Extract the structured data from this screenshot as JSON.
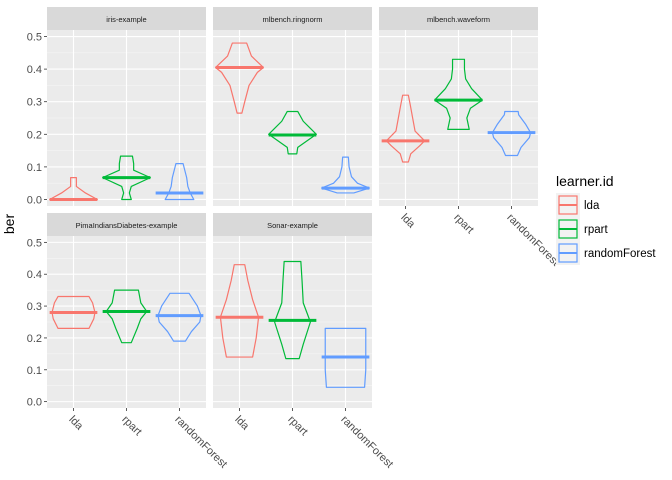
{
  "chart_data": {
    "type": "violin",
    "ylabel": "ber",
    "ylim": [
      -0.02,
      0.52
    ],
    "y_ticks": [
      "0.0",
      "0.1",
      "0.2",
      "0.3",
      "0.4",
      "0.5"
    ],
    "categories": [
      "lda",
      "rpart",
      "randomForest"
    ],
    "legend": {
      "title": "learner.id",
      "position": "right",
      "items": [
        {
          "label": "lda",
          "color": "#F8766D"
        },
        {
          "label": "rpart",
          "color": "#00BA38"
        },
        {
          "label": "randomForest",
          "color": "#619CFF"
        }
      ]
    },
    "grid": true,
    "panels": [
      {
        "title": "iris-example",
        "series": [
          {
            "learner": "lda",
            "median": 0.0,
            "profile": [
              [
                0.0,
                1.0
              ],
              [
                0.02,
                0.5
              ],
              [
                0.04,
                0.12
              ],
              [
                0.067,
                0.12
              ]
            ]
          },
          {
            "learner": "rpart",
            "median": 0.067,
            "profile": [
              [
                0.0,
                0.2
              ],
              [
                0.02,
                0.12
              ],
              [
                0.04,
                0.2
              ],
              [
                0.067,
                1.0
              ],
              [
                0.09,
                0.3
              ],
              [
                0.11,
                0.3
              ],
              [
                0.133,
                0.25
              ]
            ]
          },
          {
            "learner": "randomForest",
            "median": 0.02,
            "profile": [
              [
                0.0,
                0.6
              ],
              [
                0.02,
                0.45
              ],
              [
                0.04,
                0.35
              ],
              [
                0.067,
                0.3
              ],
              [
                0.09,
                0.22
              ],
              [
                0.11,
                0.15
              ]
            ]
          }
        ]
      },
      {
        "title": "mlbench.ringnorm",
        "series": [
          {
            "learner": "lda",
            "median": 0.405,
            "profile": [
              [
                0.265,
                0.1
              ],
              [
                0.3,
                0.22
              ],
              [
                0.35,
                0.4
              ],
              [
                0.39,
                0.75
              ],
              [
                0.405,
                1.0
              ],
              [
                0.44,
                0.5
              ],
              [
                0.47,
                0.35
              ],
              [
                0.48,
                0.3
              ]
            ]
          },
          {
            "learner": "rpart",
            "median": 0.198,
            "profile": [
              [
                0.14,
                0.18
              ],
              [
                0.16,
                0.22
              ],
              [
                0.2,
                1.0
              ],
              [
                0.24,
                0.45
              ],
              [
                0.27,
                0.22
              ]
            ]
          },
          {
            "learner": "randomForest",
            "median": 0.035,
            "profile": [
              [
                0.02,
                0.35
              ],
              [
                0.035,
                1.0
              ],
              [
                0.05,
                0.5
              ],
              [
                0.07,
                0.25
              ],
              [
                0.1,
                0.15
              ],
              [
                0.13,
                0.12
              ]
            ]
          }
        ]
      },
      {
        "title": "mlbench.waveform",
        "series": [
          {
            "learner": "lda",
            "median": 0.18,
            "profile": [
              [
                0.115,
                0.12
              ],
              [
                0.14,
                0.22
              ],
              [
                0.165,
                0.6
              ],
              [
                0.18,
                0.8
              ],
              [
                0.21,
                0.4
              ],
              [
                0.25,
                0.3
              ],
              [
                0.29,
                0.2
              ],
              [
                0.32,
                0.12
              ]
            ]
          },
          {
            "learner": "rpart",
            "median": 0.305,
            "profile": [
              [
                0.215,
                0.45
              ],
              [
                0.25,
                0.35
              ],
              [
                0.28,
                0.5
              ],
              [
                0.305,
                1.0
              ],
              [
                0.34,
                0.55
              ],
              [
                0.37,
                0.3
              ],
              [
                0.4,
                0.25
              ],
              [
                0.43,
                0.25
              ]
            ]
          },
          {
            "learner": "randomForest",
            "median": 0.205,
            "profile": [
              [
                0.135,
                0.25
              ],
              [
                0.16,
                0.4
              ],
              [
                0.19,
                0.75
              ],
              [
                0.205,
                0.8
              ],
              [
                0.23,
                0.6
              ],
              [
                0.26,
                0.3
              ],
              [
                0.27,
                0.28
              ]
            ]
          }
        ]
      },
      {
        "title": "PimaIndiansDiabetes-example",
        "series": [
          {
            "learner": "lda",
            "median": 0.28,
            "profile": [
              [
                0.23,
                0.65
              ],
              [
                0.26,
                0.85
              ],
              [
                0.28,
                0.9
              ],
              [
                0.31,
                0.8
              ],
              [
                0.33,
                0.65
              ]
            ]
          },
          {
            "learner": "rpart",
            "median": 0.283,
            "profile": [
              [
                0.185,
                0.2
              ],
              [
                0.23,
                0.45
              ],
              [
                0.26,
                0.6
              ],
              [
                0.283,
                0.85
              ],
              [
                0.31,
                0.6
              ],
              [
                0.35,
                0.5
              ]
            ]
          },
          {
            "learner": "randomForest",
            "median": 0.27,
            "profile": [
              [
                0.19,
                0.25
              ],
              [
                0.22,
                0.5
              ],
              [
                0.25,
                0.85
              ],
              [
                0.27,
                0.9
              ],
              [
                0.3,
                0.75
              ],
              [
                0.34,
                0.4
              ]
            ]
          }
        ]
      },
      {
        "title": "Sonar-example",
        "series": [
          {
            "learner": "lda",
            "median": 0.265,
            "profile": [
              [
                0.14,
                0.55
              ],
              [
                0.2,
                0.7
              ],
              [
                0.265,
                0.8
              ],
              [
                0.32,
                0.55
              ],
              [
                0.38,
                0.35
              ],
              [
                0.43,
                0.22
              ]
            ]
          },
          {
            "learner": "rpart",
            "median": 0.255,
            "profile": [
              [
                0.135,
                0.28
              ],
              [
                0.18,
                0.45
              ],
              [
                0.25,
                0.75
              ],
              [
                0.31,
                0.45
              ],
              [
                0.38,
                0.4
              ],
              [
                0.44,
                0.35
              ]
            ]
          },
          {
            "learner": "randomForest",
            "median": 0.14,
            "profile": [
              [
                0.045,
                0.8
              ],
              [
                0.1,
                0.85
              ],
              [
                0.14,
                0.85
              ],
              [
                0.19,
                0.85
              ],
              [
                0.23,
                0.85
              ]
            ]
          }
        ]
      }
    ]
  }
}
